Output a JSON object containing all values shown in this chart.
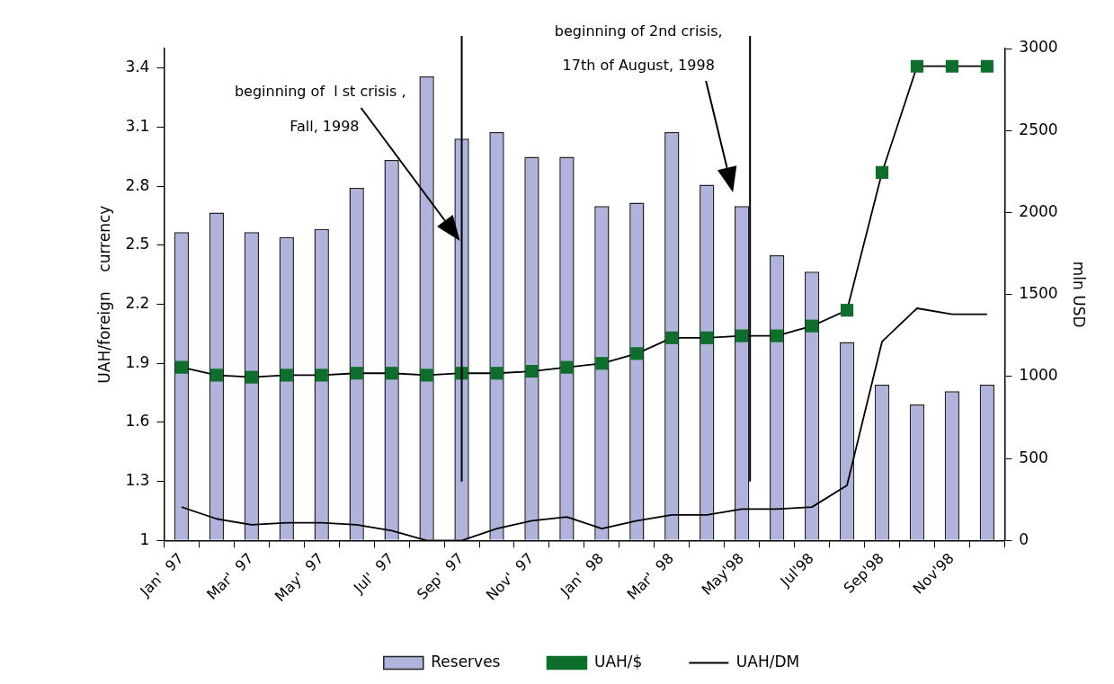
{
  "chart_data": {
    "type": "bar",
    "categories": [
      "Jan'  97",
      null,
      "Mar'  97",
      null,
      "May'  97",
      null,
      "Jul'  97",
      null,
      "Sep'  97",
      null,
      "Nov'  97",
      null,
      "Jan'  98",
      null,
      "Mar'  98",
      null,
      "May'98",
      null,
      "Jul'98",
      null,
      "Sep'98",
      null,
      "Nov'98",
      null
    ],
    "series": [
      {
        "name": "Reserves",
        "type": "bar",
        "axis": "y2",
        "color": "#b0b4dc",
        "values": [
          1880,
          2000,
          1880,
          1850,
          1900,
          2150,
          2320,
          2830,
          2450,
          2490,
          2340,
          2340,
          2040,
          2060,
          2490,
          2170,
          2040,
          1740,
          1640,
          1210,
          950,
          830,
          910,
          950
        ]
      },
      {
        "name": "UAH/$",
        "type": "line",
        "color": "#0e6e2b",
        "marker": "square",
        "values": [
          1.88,
          1.84,
          1.83,
          1.84,
          1.84,
          1.85,
          1.85,
          1.84,
          1.85,
          1.85,
          1.86,
          1.88,
          1.9,
          1.95,
          2.03,
          2.03,
          2.04,
          2.04,
          2.09,
          2.17,
          2.87,
          3.41,
          3.41,
          3.41
        ]
      },
      {
        "name": "UAH/DM",
        "type": "line",
        "color": "#000000",
        "marker": "none",
        "values": [
          1.17,
          1.11,
          1.08,
          1.09,
          1.09,
          1.08,
          1.05,
          1.0,
          1.0,
          1.06,
          1.1,
          1.12,
          1.06,
          1.1,
          1.13,
          1.13,
          1.16,
          1.16,
          1.17,
          1.28,
          2.01,
          2.18,
          2.15,
          2.15
        ]
      }
    ],
    "ylabel": "UAH/foreign    currency",
    "y2label": "mln USD",
    "ylim": [
      1,
      3.5
    ],
    "yticks": [
      1,
      1.3,
      1.6,
      1.9,
      2.2,
      2.5,
      2.8,
      3.1,
      3.4
    ],
    "y2lim": [
      0,
      3000
    ],
    "y2ticks": [
      0,
      500,
      1000,
      1500,
      2000,
      2500,
      3000
    ],
    "grid": false,
    "legend": "bottom",
    "ref_lines": [
      {
        "axis": "x",
        "value": "Sep'  97",
        "label": "beginning of  l st crisis ,\nFall, 1998"
      },
      {
        "axis": "x",
        "value": "May'98",
        "label": "beginning of 2nd crisis,\n17th of August, 1998"
      }
    ]
  }
}
